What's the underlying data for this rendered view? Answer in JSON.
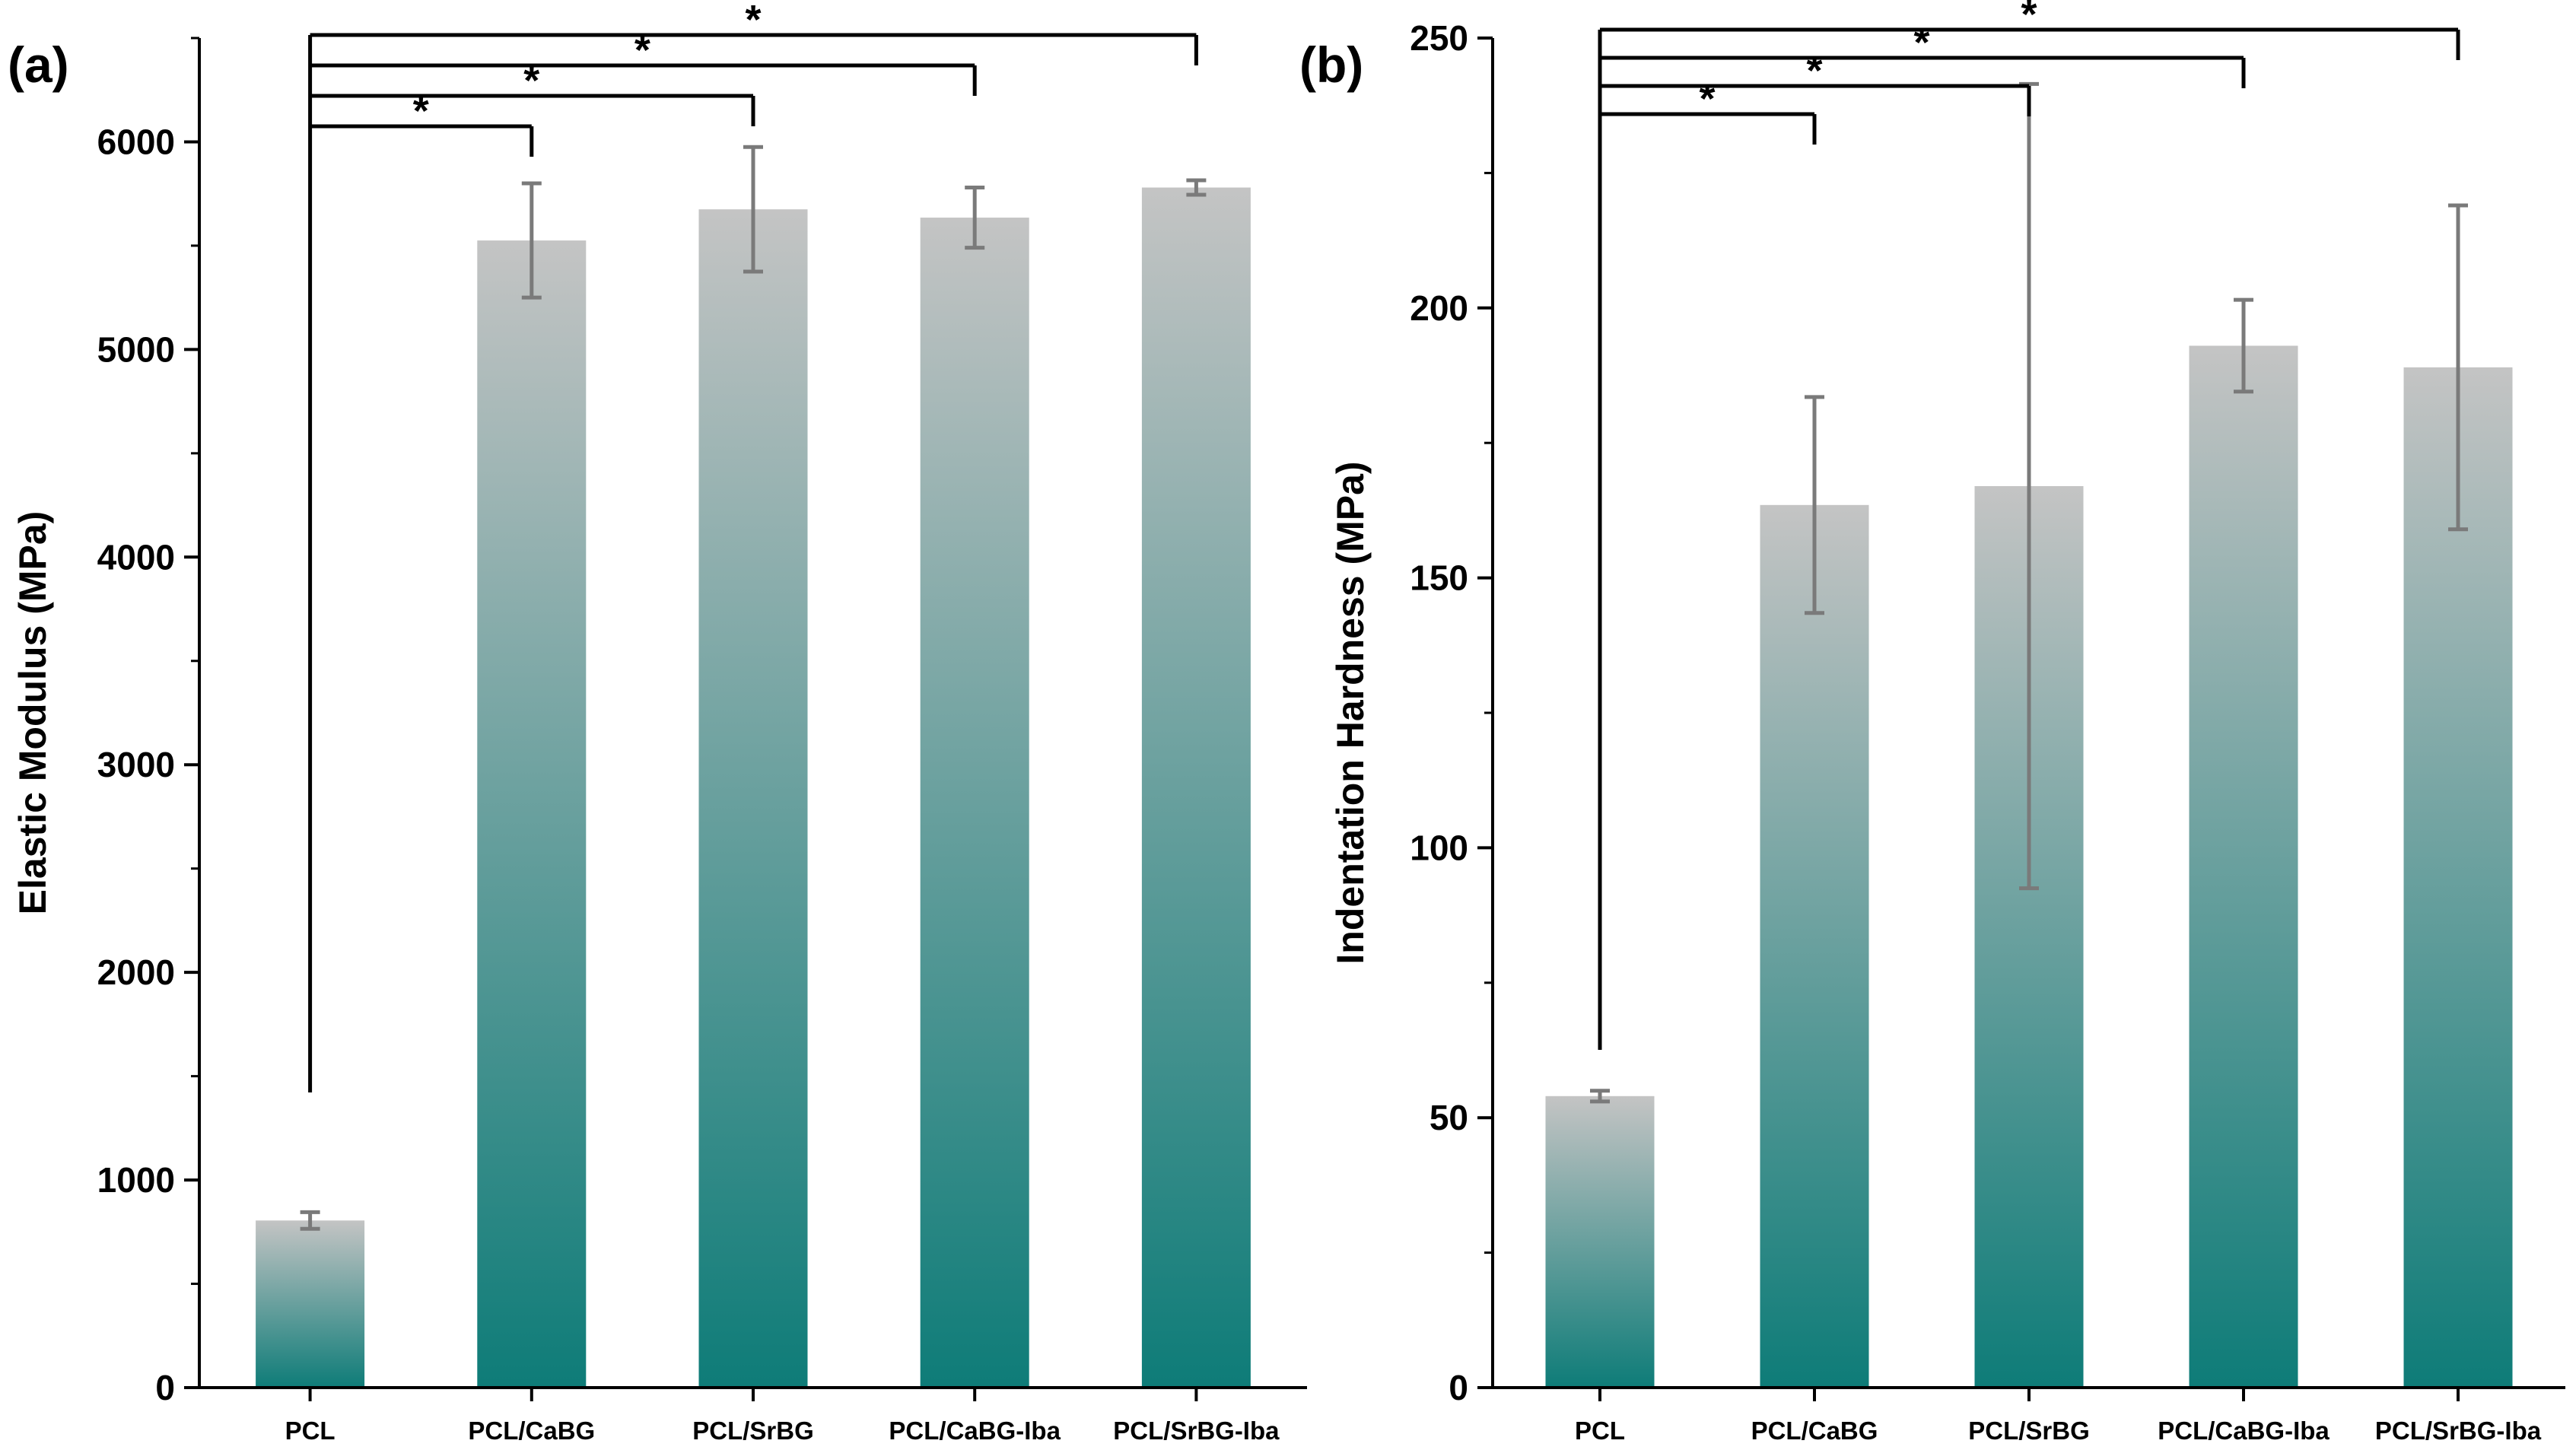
{
  "chart_data": [
    {
      "type": "bar",
      "panel_label": "(a)",
      "categories": [
        "PCL",
        "PCL/CaBG",
        "PCL/SrBG",
        "PCL/CaBG-Iba",
        "PCL/SrBG-Iba"
      ],
      "values": [
        805,
        5525,
        5675,
        5635,
        5780
      ],
      "errors": [
        40,
        275,
        300,
        145,
        35
      ],
      "xlabel": "",
      "ylabel": "Elastic Modulus (MPa)",
      "ylim": [
        0,
        6500
      ],
      "yticks": [
        0,
        1000,
        2000,
        3000,
        4000,
        5000,
        6000
      ],
      "grid": false,
      "legend": "none",
      "significance": [
        {
          "from": "PCL",
          "to": "PCL/CaBG",
          "label": "*"
        },
        {
          "from": "PCL",
          "to": "PCL/SrBG",
          "label": "*"
        },
        {
          "from": "PCL",
          "to": "PCL/CaBG-Iba",
          "label": "*"
        },
        {
          "from": "PCL",
          "to": "PCL/SrBG-Iba",
          "label": "*"
        }
      ]
    },
    {
      "type": "bar",
      "panel_label": "(b)",
      "categories": [
        "PCL",
        "PCL/CaBG",
        "PCL/SrBG",
        "PCL/CaBG-Iba",
        "PCL/SrBG-Iba"
      ],
      "values": [
        54,
        163.5,
        167,
        193,
        189
      ],
      "errors": [
        1,
        20,
        74.5,
        8.5,
        30
      ],
      "xlabel": "",
      "ylabel": "Indentation Hardness (MPa)",
      "ylim": [
        0,
        250
      ],
      "yticks": [
        0,
        50,
        100,
        150,
        200,
        250
      ],
      "grid": false,
      "legend": "none",
      "significance": [
        {
          "from": "PCL",
          "to": "PCL/CaBG",
          "label": "*"
        },
        {
          "from": "PCL",
          "to": "PCL/SrBG",
          "label": "*"
        },
        {
          "from": "PCL",
          "to": "PCL/CaBG-Iba",
          "label": "*"
        },
        {
          "from": "PCL",
          "to": "PCL/SrBG-Iba",
          "label": "*"
        }
      ]
    }
  ],
  "colors": {
    "bar_top": "#c4c4c4",
    "bar_bottom": "#0e7c78",
    "error_bar": "#7a7a7a",
    "axis": "#000000",
    "text": "#000000"
  }
}
